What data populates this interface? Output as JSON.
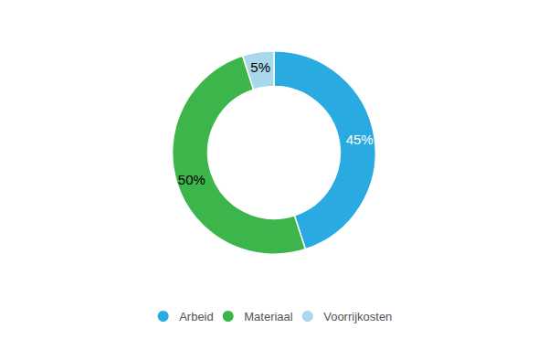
{
  "chart_data": {
    "type": "pie",
    "categories": [
      "Arbeid",
      "Materiaal",
      "Voorrijkosten"
    ],
    "values": [
      45,
      50,
      5
    ],
    "value_labels": [
      "45%",
      "50%",
      "5%"
    ],
    "colors": [
      "#29ABE2",
      "#3CB54A",
      "#A8D8EA"
    ],
    "data_labels": true,
    "legend": "bottom"
  }
}
